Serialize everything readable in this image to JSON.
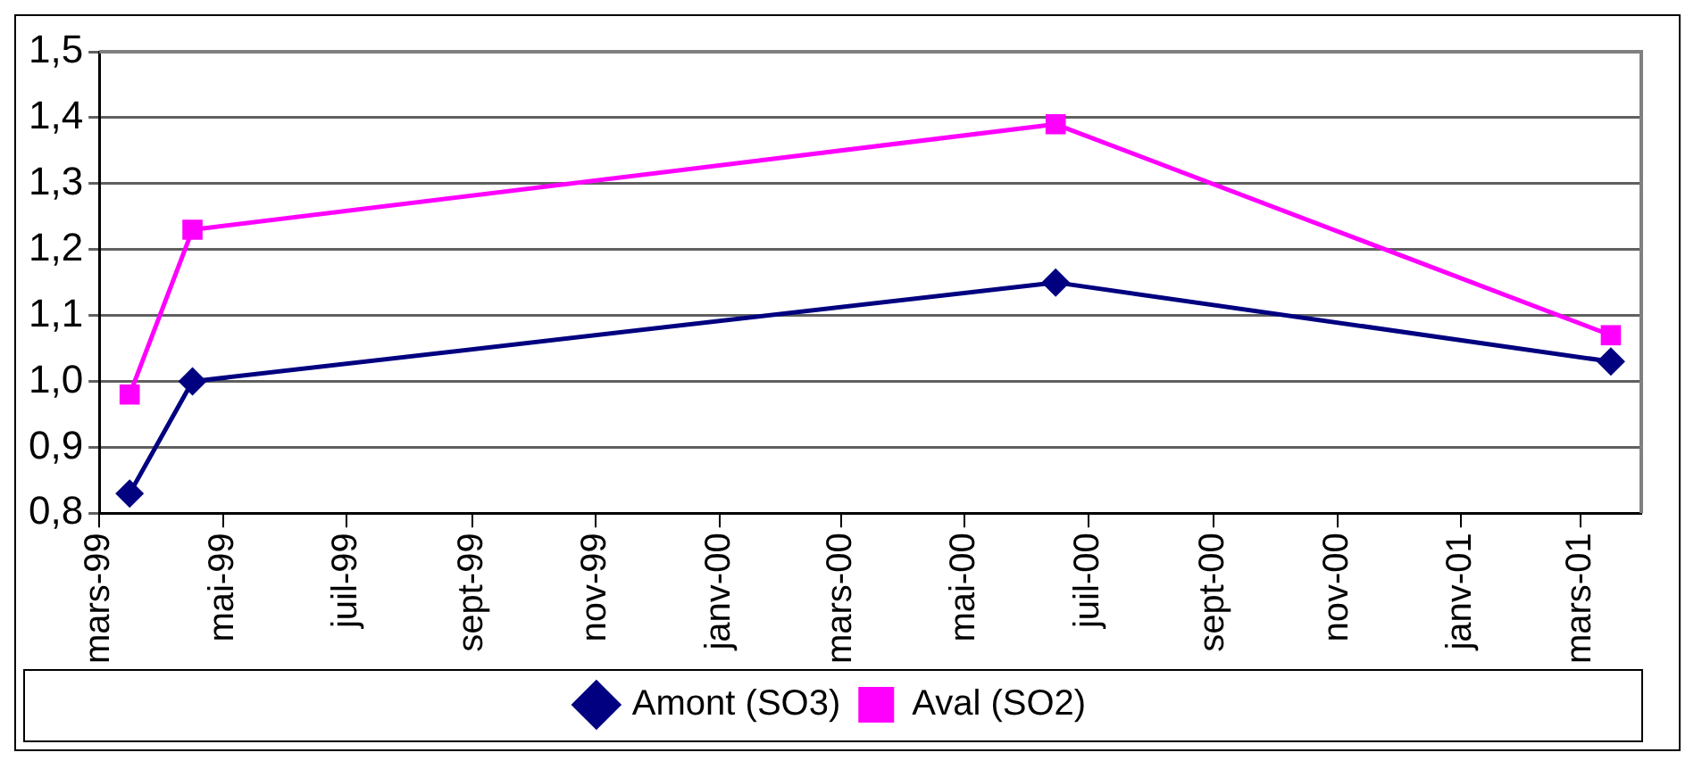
{
  "chart_data": {
    "type": "line",
    "x": [
      "1999-03-16",
      "1999-04-16",
      "2000-06-15",
      "2001-03-16"
    ],
    "series": [
      {
        "name": "Amont (SO3)",
        "color": "#000080",
        "marker": "diamond",
        "values": [
          0.83,
          1.0,
          1.15,
          1.03
        ]
      },
      {
        "name": "Aval (SO2)",
        "color": "#ff00ff",
        "marker": "square",
        "values": [
          0.98,
          1.23,
          1.39,
          1.07
        ]
      }
    ],
    "xlim": [
      "1999-03-01",
      "2001-03-31"
    ],
    "xticks": [
      {
        "value": "1999-03-01",
        "label": "mars-99"
      },
      {
        "value": "1999-05-01",
        "label": "mai-99"
      },
      {
        "value": "1999-07-01",
        "label": "juil-99"
      },
      {
        "value": "1999-09-01",
        "label": "sept-99"
      },
      {
        "value": "1999-11-01",
        "label": "nov-99"
      },
      {
        "value": "2000-01-01",
        "label": "janv-00"
      },
      {
        "value": "2000-03-01",
        "label": "mars-00"
      },
      {
        "value": "2000-05-01",
        "label": "mai-00"
      },
      {
        "value": "2000-07-01",
        "label": "juil-00"
      },
      {
        "value": "2000-09-01",
        "label": "sept-00"
      },
      {
        "value": "2000-11-01",
        "label": "nov-00"
      },
      {
        "value": "2001-01-01",
        "label": "janv-01"
      },
      {
        "value": "2001-03-01",
        "label": "mars-01"
      }
    ],
    "ylim": [
      0.8,
      1.5
    ],
    "yticks": [
      {
        "value": 0.8,
        "label": "0,8"
      },
      {
        "value": 0.9,
        "label": "0,9"
      },
      {
        "value": 1.0,
        "label": "1,0"
      },
      {
        "value": 1.1,
        "label": "1,1"
      },
      {
        "value": 1.2,
        "label": "1,2"
      },
      {
        "value": 1.3,
        "label": "1,3"
      },
      {
        "value": 1.4,
        "label": "1,4"
      },
      {
        "value": 1.5,
        "label": "1,5"
      }
    ],
    "grid": "y",
    "legend": "bottom",
    "line_style": "solid"
  }
}
